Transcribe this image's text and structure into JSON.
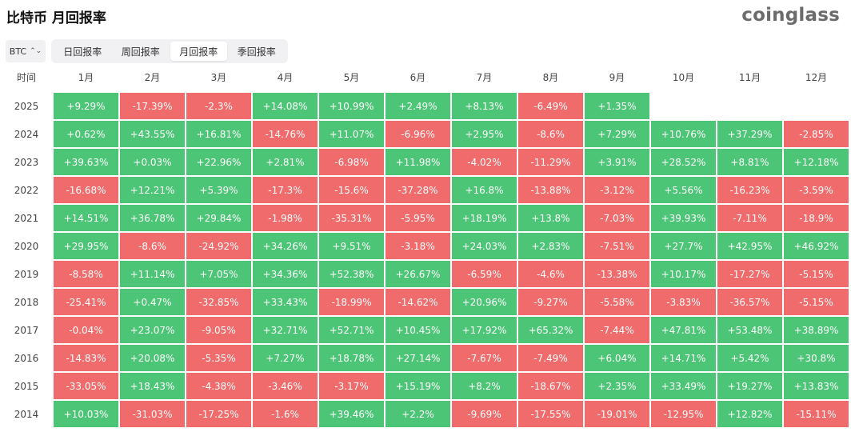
{
  "title": "比特币 月回报率",
  "brand": "coinglass",
  "coin_select": {
    "value": "BTC",
    "icon": "up-down-chevron-icon"
  },
  "tabs": [
    {
      "label": "日回报率",
      "active": false
    },
    {
      "label": "周回报率",
      "active": false
    },
    {
      "label": "月回报率",
      "active": true
    },
    {
      "label": "季回报率",
      "active": false
    }
  ],
  "colors": {
    "positive": "#4dc576",
    "negative": "#f06b6b"
  },
  "table": {
    "corner": "时间",
    "months": [
      "1月",
      "2月",
      "3月",
      "4月",
      "5月",
      "6月",
      "7月",
      "8月",
      "9月",
      "10月",
      "11月",
      "12月"
    ],
    "rows": [
      {
        "year": "2025",
        "values": [
          "+9.29%",
          "-17.39%",
          "-2.3%",
          "+14.08%",
          "+10.99%",
          "+2.49%",
          "+8.13%",
          "-6.49%",
          "+1.35%",
          "",
          "",
          ""
        ]
      },
      {
        "year": "2024",
        "values": [
          "+0.62%",
          "+43.55%",
          "+16.81%",
          "-14.76%",
          "+11.07%",
          "-6.96%",
          "+2.95%",
          "-8.6%",
          "+7.29%",
          "+10.76%",
          "+37.29%",
          "-2.85%"
        ]
      },
      {
        "year": "2023",
        "values": [
          "+39.63%",
          "+0.03%",
          "+22.96%",
          "+2.81%",
          "-6.98%",
          "+11.98%",
          "-4.02%",
          "-11.29%",
          "+3.91%",
          "+28.52%",
          "+8.81%",
          "+12.18%"
        ]
      },
      {
        "year": "2022",
        "values": [
          "-16.68%",
          "+12.21%",
          "+5.39%",
          "-17.3%",
          "-15.6%",
          "-37.28%",
          "+16.8%",
          "-13.88%",
          "-3.12%",
          "+5.56%",
          "-16.23%",
          "-3.59%"
        ]
      },
      {
        "year": "2021",
        "values": [
          "+14.51%",
          "+36.78%",
          "+29.84%",
          "-1.98%",
          "-35.31%",
          "-5.95%",
          "+18.19%",
          "+13.8%",
          "-7.03%",
          "+39.93%",
          "-7.11%",
          "-18.9%"
        ]
      },
      {
        "year": "2020",
        "values": [
          "+29.95%",
          "-8.6%",
          "-24.92%",
          "+34.26%",
          "+9.51%",
          "-3.18%",
          "+24.03%",
          "+2.83%",
          "-7.51%",
          "+27.7%",
          "+42.95%",
          "+46.92%"
        ]
      },
      {
        "year": "2019",
        "values": [
          "-8.58%",
          "+11.14%",
          "+7.05%",
          "+34.36%",
          "+52.38%",
          "+26.67%",
          "-6.59%",
          "-4.6%",
          "-13.38%",
          "+10.17%",
          "-17.27%",
          "-5.15%"
        ]
      },
      {
        "year": "2018",
        "values": [
          "-25.41%",
          "+0.47%",
          "-32.85%",
          "+33.43%",
          "-18.99%",
          "-14.62%",
          "+20.96%",
          "-9.27%",
          "-5.58%",
          "-3.83%",
          "-36.57%",
          "-5.15%"
        ]
      },
      {
        "year": "2017",
        "values": [
          "-0.04%",
          "+23.07%",
          "-9.05%",
          "+32.71%",
          "+52.71%",
          "+10.45%",
          "+17.92%",
          "+65.32%",
          "-7.44%",
          "+47.81%",
          "+53.48%",
          "+38.89%"
        ]
      },
      {
        "year": "2016",
        "values": [
          "-14.83%",
          "+20.08%",
          "-5.35%",
          "+7.27%",
          "+18.78%",
          "+27.14%",
          "-7.67%",
          "-7.49%",
          "+6.04%",
          "+14.71%",
          "+5.42%",
          "+30.8%"
        ]
      },
      {
        "year": "2015",
        "values": [
          "-33.05%",
          "+18.43%",
          "-4.38%",
          "-3.46%",
          "-3.17%",
          "+15.19%",
          "+8.2%",
          "-18.67%",
          "+2.35%",
          "+33.49%",
          "+19.27%",
          "+13.83%"
        ]
      },
      {
        "year": "2014",
        "values": [
          "+10.03%",
          "-31.03%",
          "-17.25%",
          "-1.6%",
          "+39.46%",
          "+2.2%",
          "-9.69%",
          "-17.55%",
          "-19.01%",
          "-12.95%",
          "+12.82%",
          "-15.11%"
        ]
      }
    ]
  }
}
